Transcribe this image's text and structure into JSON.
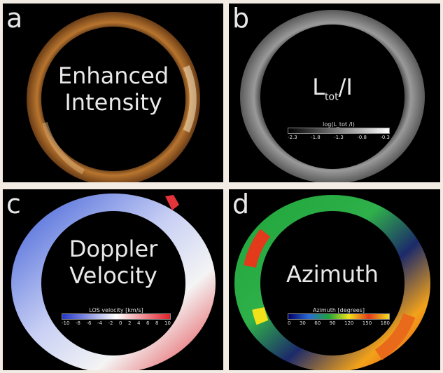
{
  "panels": {
    "a": {
      "letter": "a",
      "title_lines": [
        "Enhanced",
        "Intensity"
      ]
    },
    "b": {
      "letter": "b",
      "title_main": "L",
      "title_sub": "tot",
      "title_tail": "/I",
      "colorbar": {
        "label": "log(L_tot /I)",
        "ticks": [
          "-2.3",
          "-1.8",
          "-1.3",
          "-0.8",
          "-0.3"
        ]
      }
    },
    "c": {
      "letter": "c",
      "title_lines": [
        "Doppler",
        "Velocity"
      ],
      "colorbar": {
        "label": "LOS velocity [km/s]",
        "ticks": [
          "-10",
          "-8",
          "-6",
          "-4",
          "-2",
          "0",
          "2",
          "4",
          "6",
          "8",
          "10"
        ]
      }
    },
    "d": {
      "letter": "d",
      "title_lines": [
        "Azimuth"
      ],
      "colorbar": {
        "label": "Azimuth [degrees]",
        "ticks": [
          "0",
          "30",
          "60",
          "90",
          "120",
          "150",
          "180"
        ]
      }
    }
  },
  "colors": {
    "page_background": "#f3ece4",
    "panel_background": "#000000",
    "intensity_ring": "#a2652c",
    "intensity_highlight": "#f4e2c2",
    "polarization_ring": "#8a8a8a",
    "doppler_blue": "#3a5bd6",
    "doppler_white": "#f4f4f4",
    "doppler_red": "#e2343a",
    "azimuth_green": "#1ea43a",
    "azimuth_red": "#e23a1a",
    "azimuth_yellow": "#f2e21a",
    "azimuth_blue": "#1c2a6a"
  }
}
